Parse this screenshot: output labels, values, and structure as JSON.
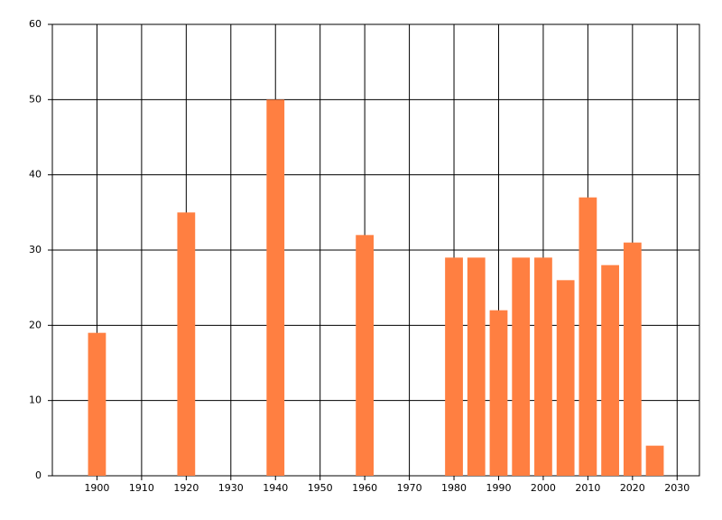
{
  "chart_data": {
    "type": "bar",
    "x": [
      1900,
      1920,
      1940,
      1960,
      1980,
      1985,
      1990,
      1995,
      2000,
      2005,
      2010,
      2015,
      2020,
      2025
    ],
    "values": [
      19,
      35,
      50,
      32,
      29,
      29,
      22,
      29,
      29,
      26,
      37,
      28,
      31,
      4
    ],
    "color": "#ff7f41",
    "xlim": [
      1890,
      2035
    ],
    "xticks": [
      1900,
      1910,
      1920,
      1930,
      1940,
      1950,
      1960,
      1970,
      1980,
      1990,
      2000,
      2010,
      2020,
      2030
    ],
    "ylim": [
      0,
      60
    ],
    "yticks": [
      0,
      10,
      20,
      30,
      40,
      50,
      60
    ],
    "grid": true
  }
}
